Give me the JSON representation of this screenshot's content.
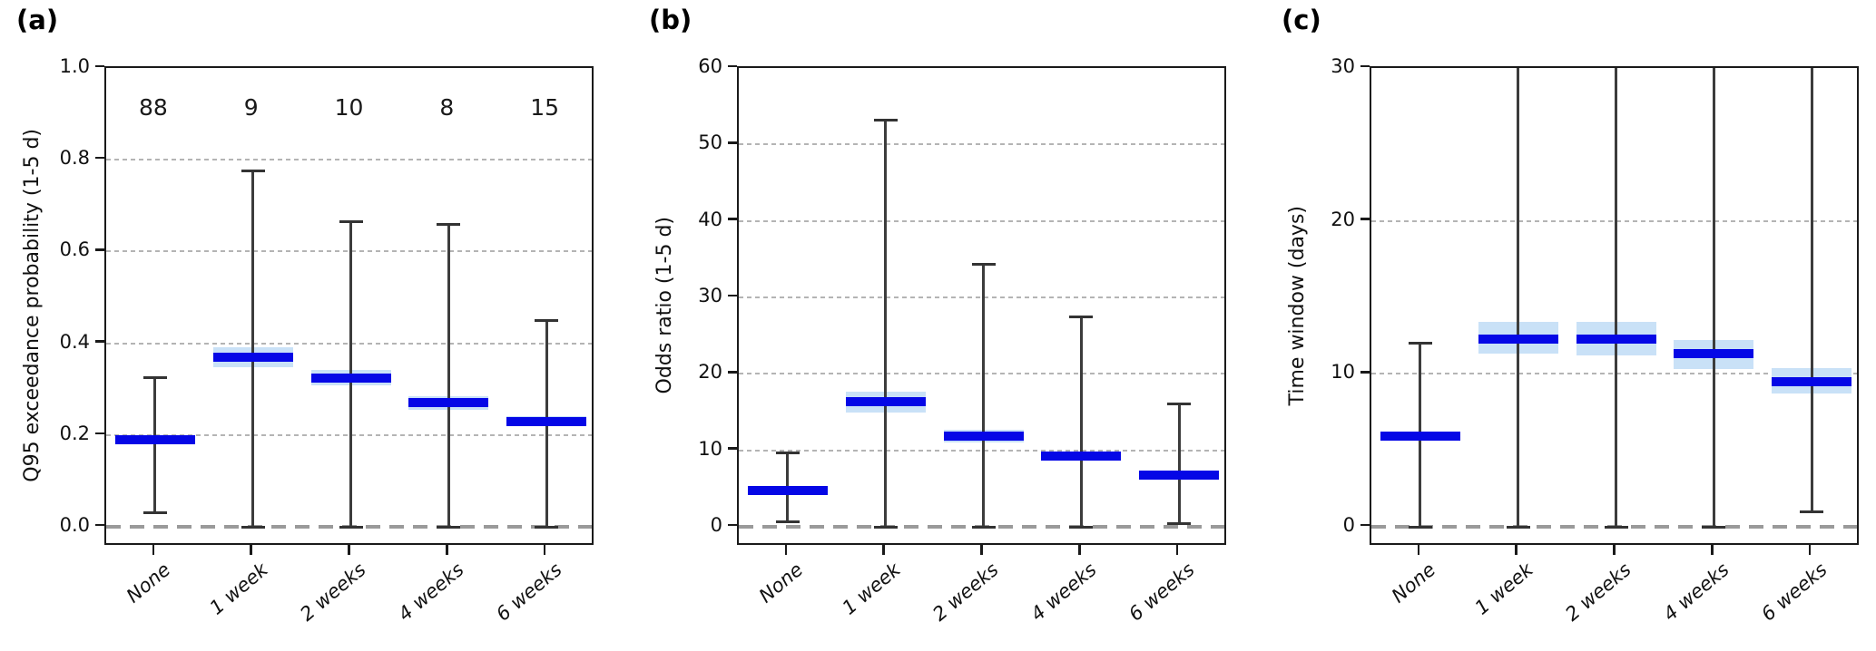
{
  "figure": {
    "background": "#ffffff"
  },
  "colors": {
    "median_bar": "#0507e6",
    "ci_band": "#c9e1f7",
    "whisker": "#3c3c3c",
    "grid": "#b4b4b4",
    "zero_line": "#9a9a9a",
    "spine": "#1a1a1a",
    "text": "#111111"
  },
  "chart_data": [
    {
      "type": "errorbar",
      "panel_label": "(a)",
      "ylabel": "Q95 exceedance probability (1-5 d)",
      "categories": [
        "None",
        "1 week",
        "2 weeks",
        "4 weeks",
        "6 weeks"
      ],
      "counts": [
        "88",
        "9",
        "10",
        "8",
        "15"
      ],
      "counts_y": 0.91,
      "ymax": 1.0,
      "ylim": [
        -0.045,
        1.0
      ],
      "yticks": [
        {
          "v": 0.0,
          "t": "0.0"
        },
        {
          "v": 0.2,
          "t": "0.2"
        },
        {
          "v": 0.4,
          "t": "0.4"
        },
        {
          "v": 0.6,
          "t": "0.6"
        },
        {
          "v": 0.8,
          "t": "0.8"
        },
        {
          "v": 1.0,
          "t": "1.0"
        }
      ],
      "gridlines": [
        0.2,
        0.4,
        0.6,
        0.8
      ],
      "zero_line": 0.0,
      "series": [
        {
          "category": "None",
          "median": 0.19,
          "ci_low": 0.03,
          "ci_high": 0.325,
          "band_low": 0.18,
          "band_high": 0.199
        },
        {
          "category": "1 week",
          "median": 0.37,
          "ci_low": 0.0,
          "ci_high": 0.775,
          "band_low": 0.347,
          "band_high": 0.392
        },
        {
          "category": "2 weeks",
          "median": 0.325,
          "ci_low": 0.0,
          "ci_high": 0.665,
          "band_low": 0.308,
          "band_high": 0.342
        },
        {
          "category": "4 weeks",
          "median": 0.27,
          "ci_low": 0.0,
          "ci_high": 0.66,
          "band_low": 0.255,
          "band_high": 0.285
        },
        {
          "category": "6 weeks",
          "median": 0.23,
          "ci_low": 0.0,
          "ci_high": 0.45,
          "band_low": 0.219,
          "band_high": 0.242
        }
      ]
    },
    {
      "type": "errorbar",
      "panel_label": "(b)",
      "ylabel": "Odds ratio (1-5 d)",
      "categories": [
        "None",
        "1 week",
        "2 weeks",
        "4 weeks",
        "6 weeks"
      ],
      "counts": null,
      "counts_y": null,
      "ymax": 60,
      "ylim": [
        -2.6,
        60
      ],
      "yticks": [
        {
          "v": 0,
          "t": "0"
        },
        {
          "v": 10,
          "t": "10"
        },
        {
          "v": 20,
          "t": "20"
        },
        {
          "v": 30,
          "t": "30"
        },
        {
          "v": 40,
          "t": "40"
        },
        {
          "v": 50,
          "t": "50"
        },
        {
          "v": 60,
          "t": "60"
        }
      ],
      "gridlines": [
        10,
        20,
        30,
        40,
        50
      ],
      "zero_line": 0,
      "series": [
        {
          "category": "None",
          "median": 4.7,
          "ci_low": 0.7,
          "ci_high": 9.7,
          "band_low": 4.3,
          "band_high": 5.1
        },
        {
          "category": "1 week",
          "median": 16.4,
          "ci_low": 0.0,
          "ci_high": 53.2,
          "band_low": 14.9,
          "band_high": 17.7
        },
        {
          "category": "2 weeks",
          "median": 11.9,
          "ci_low": 0.0,
          "ci_high": 34.3,
          "band_low": 11.0,
          "band_high": 12.7
        },
        {
          "category": "4 weeks",
          "median": 9.3,
          "ci_low": 0.0,
          "ci_high": 27.5,
          "band_low": 8.8,
          "band_high": 9.9
        },
        {
          "category": "6 weeks",
          "median": 6.8,
          "ci_low": 0.4,
          "ci_high": 16.1,
          "band_low": 6.4,
          "band_high": 7.3
        }
      ]
    },
    {
      "type": "errorbar",
      "panel_label": "(c)",
      "ylabel": "Time window (days)",
      "categories": [
        "None",
        "1 week",
        "2 weeks",
        "4 weeks",
        "6 weeks"
      ],
      "counts": null,
      "counts_y": null,
      "ymax": 30,
      "ylim": [
        -1.3,
        30
      ],
      "yticks": [
        {
          "v": 0,
          "t": "0"
        },
        {
          "v": 10,
          "t": "10"
        },
        {
          "v": 20,
          "t": "20"
        },
        {
          "v": 30,
          "t": "30"
        }
      ],
      "gridlines": [
        10,
        20
      ],
      "zero_line": 0,
      "series": [
        {
          "category": "None",
          "median": 5.9,
          "ci_low": 0.0,
          "ci_high": 12.0,
          "band_low": 5.7,
          "band_high": 6.1
        },
        {
          "category": "1 week",
          "median": 12.3,
          "ci_low": 0.0,
          "ci_high": 30.0,
          "band_low": 11.3,
          "band_high": 13.4
        },
        {
          "category": "2 weeks",
          "median": 12.3,
          "ci_low": 0.0,
          "ci_high": 30.0,
          "band_low": 11.2,
          "band_high": 13.4
        },
        {
          "category": "4 weeks",
          "median": 11.3,
          "ci_low": 0.0,
          "ci_high": 30.0,
          "band_low": 10.3,
          "band_high": 12.2
        },
        {
          "category": "6 weeks",
          "median": 9.5,
          "ci_low": 1.0,
          "ci_high": 30.0,
          "band_low": 8.7,
          "band_high": 10.4
        }
      ]
    }
  ]
}
